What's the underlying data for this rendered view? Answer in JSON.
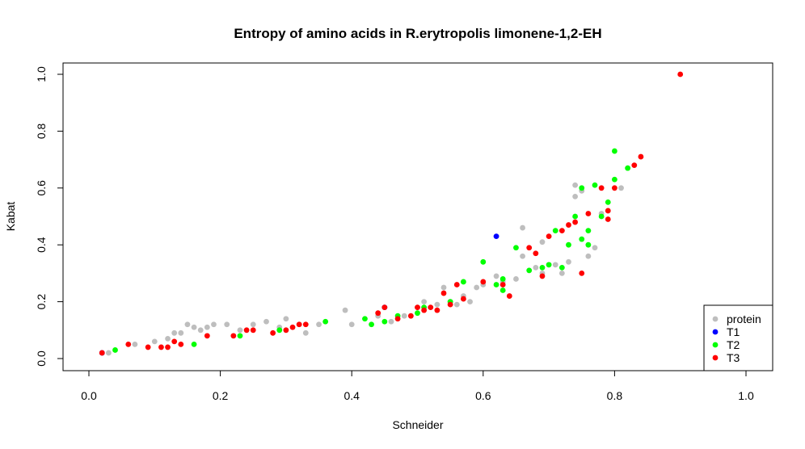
{
  "chart_data": {
    "type": "scatter",
    "title": "Entropy of amino acids in R.erytropolis limonene-1,2-EH",
    "xlabel": "Schneider",
    "ylabel": "Kabat",
    "xlim": [
      0.0,
      1.0
    ],
    "ylim": [
      0.0,
      1.0
    ],
    "xticks": [
      "0.0",
      "0.2",
      "0.4",
      "0.6",
      "0.8",
      "1.0"
    ],
    "yticks": [
      "0.0",
      "0.2",
      "0.4",
      "0.6",
      "0.8",
      "1.0"
    ],
    "grid": false,
    "legend_position": "bottom-right",
    "series": [
      {
        "name": "protein",
        "color": "#bebebe",
        "points": [
          [
            0.03,
            0.02
          ],
          [
            0.07,
            0.05
          ],
          [
            0.1,
            0.06
          ],
          [
            0.12,
            0.07
          ],
          [
            0.13,
            0.09
          ],
          [
            0.14,
            0.09
          ],
          [
            0.15,
            0.12
          ],
          [
            0.16,
            0.11
          ],
          [
            0.17,
            0.1
          ],
          [
            0.18,
            0.11
          ],
          [
            0.19,
            0.12
          ],
          [
            0.21,
            0.12
          ],
          [
            0.23,
            0.1
          ],
          [
            0.25,
            0.12
          ],
          [
            0.27,
            0.13
          ],
          [
            0.29,
            0.11
          ],
          [
            0.3,
            0.14
          ],
          [
            0.32,
            0.12
          ],
          [
            0.33,
            0.09
          ],
          [
            0.35,
            0.12
          ],
          [
            0.39,
            0.17
          ],
          [
            0.4,
            0.12
          ],
          [
            0.44,
            0.15
          ],
          [
            0.46,
            0.13
          ],
          [
            0.48,
            0.15
          ],
          [
            0.5,
            0.18
          ],
          [
            0.51,
            0.2
          ],
          [
            0.53,
            0.19
          ],
          [
            0.54,
            0.25
          ],
          [
            0.55,
            0.2
          ],
          [
            0.56,
            0.19
          ],
          [
            0.57,
            0.22
          ],
          [
            0.58,
            0.2
          ],
          [
            0.59,
            0.25
          ],
          [
            0.6,
            0.26
          ],
          [
            0.62,
            0.29
          ],
          [
            0.63,
            0.27
          ],
          [
            0.65,
            0.28
          ],
          [
            0.66,
            0.46
          ],
          [
            0.66,
            0.36
          ],
          [
            0.67,
            0.31
          ],
          [
            0.68,
            0.32
          ],
          [
            0.69,
            0.3
          ],
          [
            0.69,
            0.41
          ],
          [
            0.7,
            0.33
          ],
          [
            0.71,
            0.33
          ],
          [
            0.72,
            0.3
          ],
          [
            0.73,
            0.34
          ],
          [
            0.74,
            0.61
          ],
          [
            0.74,
            0.57
          ],
          [
            0.75,
            0.59
          ],
          [
            0.76,
            0.36
          ],
          [
            0.77,
            0.39
          ],
          [
            0.78,
            0.51
          ],
          [
            0.81,
            0.6
          ],
          [
            0.82,
            0.67
          ]
        ]
      },
      {
        "name": "T1",
        "color": "#0000ff",
        "points": [
          [
            0.02,
            0.02
          ],
          [
            0.45,
            0.18
          ],
          [
            0.62,
            0.43
          ]
        ]
      },
      {
        "name": "T2",
        "color": "#00ff00",
        "points": [
          [
            0.04,
            0.03
          ],
          [
            0.16,
            0.05
          ],
          [
            0.23,
            0.08
          ],
          [
            0.29,
            0.1
          ],
          [
            0.36,
            0.13
          ],
          [
            0.42,
            0.14
          ],
          [
            0.43,
            0.12
          ],
          [
            0.45,
            0.13
          ],
          [
            0.47,
            0.15
          ],
          [
            0.5,
            0.16
          ],
          [
            0.51,
            0.18
          ],
          [
            0.55,
            0.2
          ],
          [
            0.57,
            0.27
          ],
          [
            0.6,
            0.34
          ],
          [
            0.62,
            0.26
          ],
          [
            0.63,
            0.24
          ],
          [
            0.63,
            0.28
          ],
          [
            0.65,
            0.39
          ],
          [
            0.67,
            0.31
          ],
          [
            0.69,
            0.32
          ],
          [
            0.7,
            0.33
          ],
          [
            0.71,
            0.45
          ],
          [
            0.72,
            0.32
          ],
          [
            0.73,
            0.4
          ],
          [
            0.74,
            0.5
          ],
          [
            0.75,
            0.42
          ],
          [
            0.75,
            0.6
          ],
          [
            0.76,
            0.45
          ],
          [
            0.76,
            0.4
          ],
          [
            0.77,
            0.61
          ],
          [
            0.78,
            0.5
          ],
          [
            0.79,
            0.55
          ],
          [
            0.8,
            0.73
          ],
          [
            0.8,
            0.63
          ],
          [
            0.82,
            0.67
          ]
        ]
      },
      {
        "name": "T3",
        "color": "#ff0000",
        "points": [
          [
            0.02,
            0.02
          ],
          [
            0.06,
            0.05
          ],
          [
            0.09,
            0.04
          ],
          [
            0.11,
            0.04
          ],
          [
            0.12,
            0.04
          ],
          [
            0.13,
            0.06
          ],
          [
            0.14,
            0.05
          ],
          [
            0.18,
            0.08
          ],
          [
            0.22,
            0.08
          ],
          [
            0.24,
            0.1
          ],
          [
            0.25,
            0.1
          ],
          [
            0.28,
            0.09
          ],
          [
            0.3,
            0.1
          ],
          [
            0.31,
            0.11
          ],
          [
            0.32,
            0.12
          ],
          [
            0.33,
            0.12
          ],
          [
            0.44,
            0.16
          ],
          [
            0.45,
            0.18
          ],
          [
            0.47,
            0.14
          ],
          [
            0.49,
            0.15
          ],
          [
            0.5,
            0.18
          ],
          [
            0.51,
            0.17
          ],
          [
            0.52,
            0.18
          ],
          [
            0.53,
            0.17
          ],
          [
            0.54,
            0.23
          ],
          [
            0.55,
            0.19
          ],
          [
            0.56,
            0.26
          ],
          [
            0.57,
            0.21
          ],
          [
            0.6,
            0.27
          ],
          [
            0.63,
            0.26
          ],
          [
            0.64,
            0.22
          ],
          [
            0.67,
            0.39
          ],
          [
            0.68,
            0.37
          ],
          [
            0.69,
            0.29
          ],
          [
            0.7,
            0.43
          ],
          [
            0.72,
            0.45
          ],
          [
            0.73,
            0.47
          ],
          [
            0.74,
            0.48
          ],
          [
            0.75,
            0.3
          ],
          [
            0.76,
            0.51
          ],
          [
            0.78,
            0.6
          ],
          [
            0.79,
            0.52
          ],
          [
            0.79,
            0.49
          ],
          [
            0.8,
            0.6
          ],
          [
            0.83,
            0.68
          ],
          [
            0.84,
            0.71
          ],
          [
            0.9,
            1.0
          ]
        ]
      }
    ]
  }
}
